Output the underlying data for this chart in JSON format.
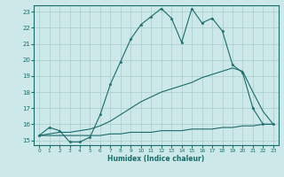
{
  "xlabel": "Humidex (Indice chaleur)",
  "xlim": [
    -0.5,
    23.5
  ],
  "ylim": [
    14.7,
    23.4
  ],
  "yticks": [
    15,
    16,
    17,
    18,
    19,
    20,
    21,
    22,
    23
  ],
  "xticks": [
    0,
    1,
    2,
    3,
    4,
    5,
    6,
    7,
    8,
    9,
    10,
    11,
    12,
    13,
    14,
    15,
    16,
    17,
    18,
    19,
    20,
    21,
    22,
    23
  ],
  "bg_color": "#cce8e8",
  "grid_color": "#aacccc",
  "line_color": "#1a6b6b",
  "line1_x": [
    0,
    1,
    2,
    3,
    4,
    5,
    6,
    7,
    8,
    9,
    10,
    11,
    12,
    13,
    14,
    15,
    16,
    17,
    18,
    19,
    20,
    21,
    22,
    23
  ],
  "line1_y": [
    15.3,
    15.8,
    15.6,
    14.9,
    14.9,
    15.2,
    16.6,
    18.5,
    19.9,
    21.3,
    22.2,
    22.7,
    23.2,
    22.6,
    21.1,
    23.2,
    22.3,
    22.6,
    21.8,
    19.7,
    19.2,
    17.0,
    16.0,
    16.0
  ],
  "line2_x": [
    0,
    1,
    2,
    3,
    4,
    5,
    6,
    7,
    8,
    9,
    10,
    11,
    12,
    13,
    14,
    15,
    16,
    17,
    18,
    19,
    20,
    21,
    22,
    23
  ],
  "line2_y": [
    15.3,
    15.4,
    15.5,
    15.5,
    15.6,
    15.7,
    15.9,
    16.2,
    16.6,
    17.0,
    17.4,
    17.7,
    18.0,
    18.2,
    18.4,
    18.6,
    18.9,
    19.1,
    19.3,
    19.5,
    19.3,
    18.0,
    16.8,
    16.0
  ],
  "line3_x": [
    0,
    1,
    2,
    3,
    4,
    5,
    6,
    7,
    8,
    9,
    10,
    11,
    12,
    13,
    14,
    15,
    16,
    17,
    18,
    19,
    20,
    21,
    22,
    23
  ],
  "line3_y": [
    15.3,
    15.3,
    15.3,
    15.3,
    15.3,
    15.3,
    15.3,
    15.4,
    15.4,
    15.5,
    15.5,
    15.5,
    15.6,
    15.6,
    15.6,
    15.7,
    15.7,
    15.7,
    15.8,
    15.8,
    15.9,
    15.9,
    16.0,
    16.0
  ]
}
